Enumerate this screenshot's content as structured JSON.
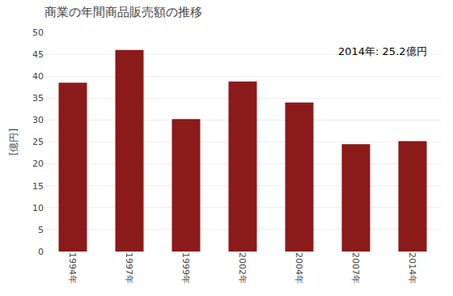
{
  "chart_data": {
    "type": "bar",
    "title": "商業の年間商品販売額の推移",
    "ylabel": "[億円]",
    "annotation": "2014年: 25.2億円",
    "categories": [
      "1994年",
      "1997年",
      "1999年",
      "2002年",
      "2004年",
      "2007年",
      "2014年"
    ],
    "values": [
      38.5,
      46.0,
      30.2,
      38.8,
      34.0,
      24.5,
      25.2
    ],
    "color": "#8B1A1A",
    "ylim": [
      0,
      50
    ],
    "yticks": [
      0,
      5,
      10,
      15,
      20,
      25,
      30,
      35,
      40,
      45,
      50
    ],
    "grid": true
  }
}
